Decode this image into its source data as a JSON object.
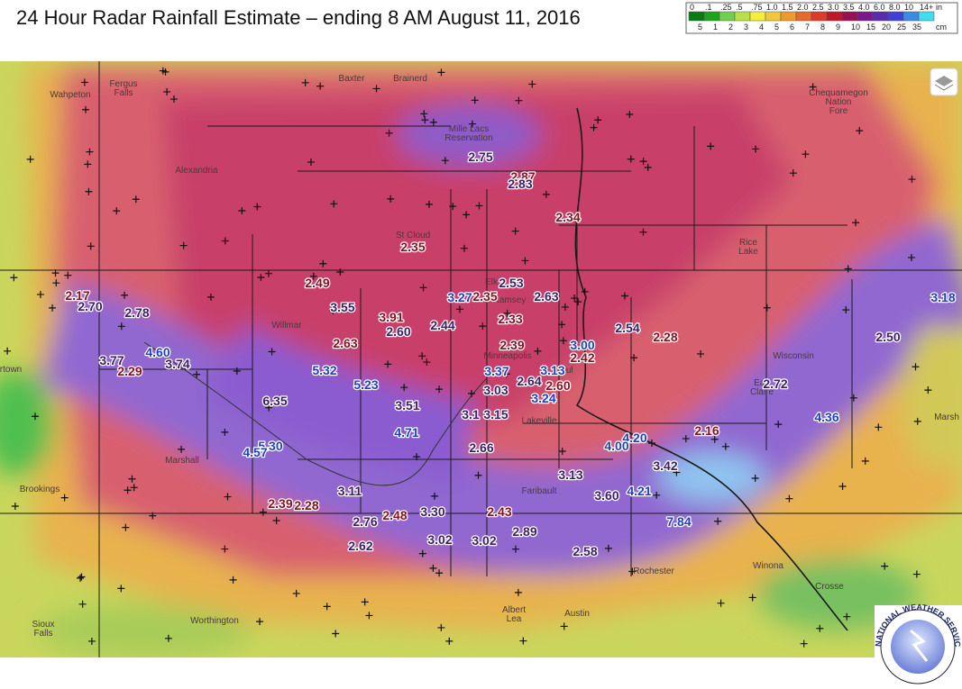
{
  "title": "24 Hour Radar Rainfall Estimate – ending 8 AM August 11, 2016",
  "legend": {
    "inch_labels": [
      "0",
      ".1",
      ".25",
      ".5",
      ".75",
      "1.0",
      "1.5",
      "2.0",
      "2.5",
      "3.0",
      "3.5",
      "4.0",
      "6.0",
      "8.0",
      "10",
      "14+"
    ],
    "inch_unit": "in",
    "cm_labels": [
      "5",
      "1",
      "2",
      "3",
      "4",
      "5",
      "6",
      "7",
      "8",
      "9",
      "10",
      "15",
      "20",
      "25",
      "35"
    ],
    "cm_unit": "cm"
  },
  "places": [
    "Wahpeton",
    "Fergus",
    "Falls",
    "Baxter",
    "Brainerd",
    "Mille Lacs",
    "Reservation",
    "Alexandria",
    "St Cloud",
    "Elk",
    "Ramsey",
    "Willmar",
    "Minneapolis",
    "aul",
    "Lakeville",
    "Marshall",
    "Brookings",
    "Faribault",
    "Rochester",
    "Winona",
    "Albert",
    "Lea",
    "Austin",
    "Worthington",
    "Sioux",
    "Falls",
    "Rice",
    "Lake",
    "Eau",
    "Claire",
    "Wisconsin",
    "Chequamegon",
    "Nation",
    "Fore",
    "Crosse",
    "rtown",
    "Marsh"
  ],
  "rainfall": [
    {
      "value": "2.75",
      "color": "#3c1e66"
    },
    {
      "value": "2.87",
      "color": "#8a0f1e"
    },
    {
      "value": "2.83",
      "color": "#3c1e66"
    },
    {
      "value": "2.34",
      "color": "#8a0f1e"
    },
    {
      "value": "2.35",
      "color": "#8a0f1e"
    },
    {
      "value": "2.49",
      "color": "#8a0f1e"
    },
    {
      "value": "2.53",
      "color": "#3c1e66"
    },
    {
      "value": "3.27",
      "color": "#1f3fc8"
    },
    {
      "value": "2.35",
      "color": "#8a0f1e"
    },
    {
      "value": "2.63",
      "color": "#3c1e66"
    },
    {
      "value": "2.17",
      "color": "#8a0f1e"
    },
    {
      "value": "2.70",
      "color": "#3c1e66"
    },
    {
      "value": "2.78",
      "color": "#3c1e66"
    },
    {
      "value": "3.55",
      "color": "#3c1e66"
    },
    {
      "value": "3.91",
      "color": "#8a0f1e"
    },
    {
      "value": "2.44",
      "color": "#3c1e66"
    },
    {
      "value": "2.60",
      "color": "#3c1e66"
    },
    {
      "value": "2.33",
      "color": "#8a0f1e"
    },
    {
      "value": "2.54",
      "color": "#3c1e66"
    },
    {
      "value": "2.28",
      "color": "#8a0f1e"
    },
    {
      "value": "3.18",
      "color": "#1f3fc8"
    },
    {
      "value": "2.50",
      "color": "#3c1e66"
    },
    {
      "value": "2.63",
      "color": "#8a0f1e"
    },
    {
      "value": "2.39",
      "color": "#8a0f1e"
    },
    {
      "value": "3.00",
      "color": "#1f3fc8"
    },
    {
      "value": "2.42",
      "color": "#8a0f1e"
    },
    {
      "value": "4.60",
      "color": "#1f3fc8"
    },
    {
      "value": "3.77",
      "color": "#3c1e66"
    },
    {
      "value": "3.74",
      "color": "#3c1e66"
    },
    {
      "value": "2.29",
      "color": "#8a0f1e"
    },
    {
      "value": "5.32",
      "color": "#1f3fc8"
    },
    {
      "value": "3.37",
      "color": "#1f3fc8"
    },
    {
      "value": "3.13",
      "color": "#1f3fc8"
    },
    {
      "value": "2.64",
      "color": "#3c1e66"
    },
    {
      "value": "2.60",
      "color": "#8a0f1e"
    },
    {
      "value": "5.23",
      "color": "#1f3fc8"
    },
    {
      "value": "2.72",
      "color": "#3c1e66"
    },
    {
      "value": "6.35",
      "color": "#3c1e66"
    },
    {
      "value": "3.51",
      "color": "#3c1e66"
    },
    {
      "value": "3.03",
      "color": "#3c1e66"
    },
    {
      "value": "3.24",
      "color": "#1f3fc8"
    },
    {
      "value": "3.1",
      "color": "#3c1e66"
    },
    {
      "value": "3.15",
      "color": "#3c1e66"
    },
    {
      "value": "4.36",
      "color": "#1f3fc8"
    },
    {
      "value": "4.71",
      "color": "#1f3fc8"
    },
    {
      "value": "2.16",
      "color": "#8a0f1e"
    },
    {
      "value": "4.20",
      "color": "#1f3fc8"
    },
    {
      "value": "4.00",
      "color": "#1f3fc8"
    },
    {
      "value": "2.66",
      "color": "#3c1e66"
    },
    {
      "value": "5.30",
      "color": "#1f3fc8"
    },
    {
      "value": "4.57",
      "color": "#1f3fc8"
    },
    {
      "value": "3.42",
      "color": "#3c1e66"
    },
    {
      "value": "3.13",
      "color": "#3c1e66"
    },
    {
      "value": "3.11",
      "color": "#3c1e66"
    },
    {
      "value": "3.60",
      "color": "#3c1e66"
    },
    {
      "value": "4.21",
      "color": "#1f3fc8"
    },
    {
      "value": "2.39",
      "color": "#8a0f1e"
    },
    {
      "value": "2.28",
      "color": "#8a0f1e"
    },
    {
      "value": "2.76",
      "color": "#3c1e66"
    },
    {
      "value": "2.48",
      "color": "#8a0f1e"
    },
    {
      "value": "3.30",
      "color": "#3c1e66"
    },
    {
      "value": "2.43",
      "color": "#8a0f1e"
    },
    {
      "value": "7.84",
      "color": "#1f3fc8"
    },
    {
      "value": "2.89",
      "color": "#3c1e66"
    },
    {
      "value": "2.62",
      "color": "#3c1e66"
    },
    {
      "value": "3.02",
      "color": "#3c1e66"
    },
    {
      "value": "3.02",
      "color": "#3c1e66"
    },
    {
      "value": "2.58",
      "color": "#3c1e66"
    }
  ],
  "logo": "NATIONAL WEATHER SERVICE"
}
